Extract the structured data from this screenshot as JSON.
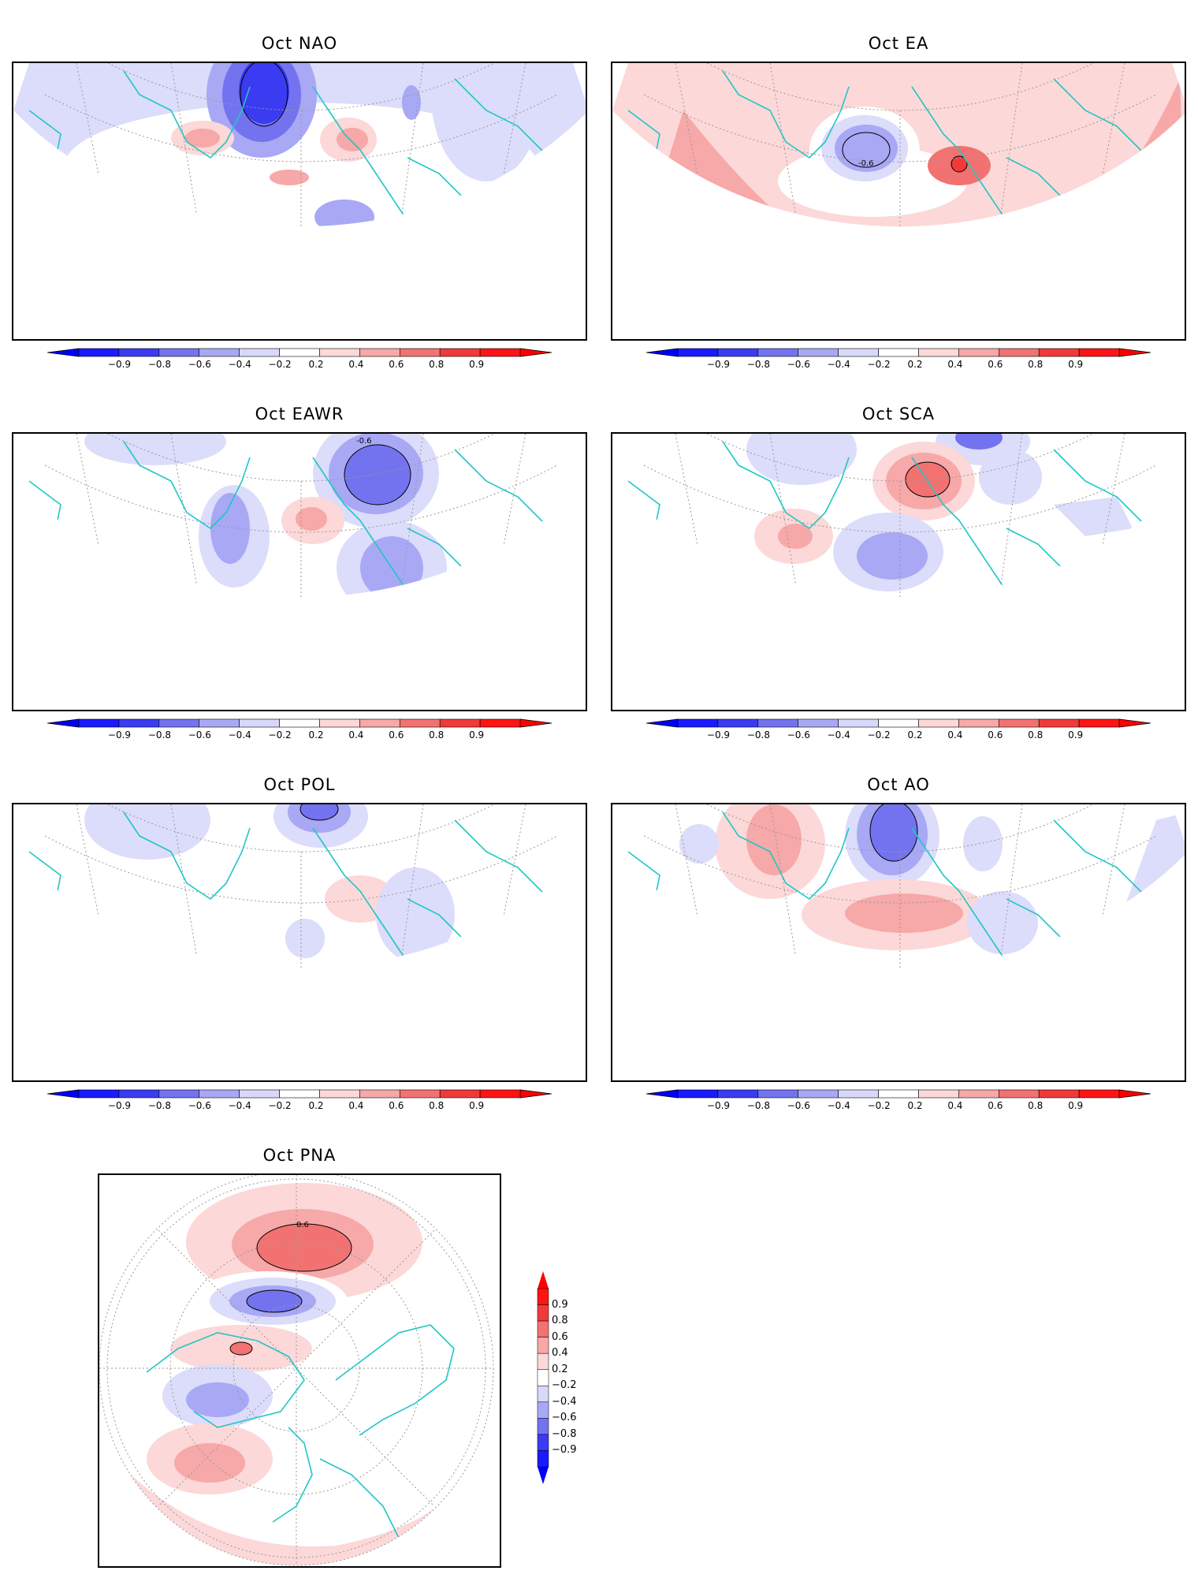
{
  "panels": [
    {
      "id": "nao",
      "title": "Oct NAO"
    },
    {
      "id": "ea",
      "title": "Oct EA"
    },
    {
      "id": "eawr",
      "title": "Oct EAWR"
    },
    {
      "id": "sca",
      "title": "Oct SCA"
    },
    {
      "id": "pol",
      "title": "Oct POL"
    },
    {
      "id": "ao",
      "title": "Oct AO"
    },
    {
      "id": "pna",
      "title": "Oct PNA"
    }
  ],
  "contour_labels": {
    "ea": "-0.6",
    "eawr": "-0.6",
    "pna": "0.6"
  },
  "colorbar": {
    "levels": [
      "-0.9",
      "-0.8",
      "-0.6",
      "-0.4",
      "-0.2",
      "0.2",
      "0.4",
      "0.6",
      "0.8",
      "0.9"
    ],
    "colors": [
      "#1a1aff",
      "#3b3bf2",
      "#7373f0",
      "#a8a8f5",
      "#d8d8fb",
      "#ffffff",
      "#fcd8d8",
      "#f7a8a8",
      "#f27272",
      "#f03a3a",
      "#ff1414"
    ],
    "extend_colors": {
      "low": "#0000ff",
      "high": "#ff0000"
    }
  },
  "coast_color": "#1fc7c4"
}
